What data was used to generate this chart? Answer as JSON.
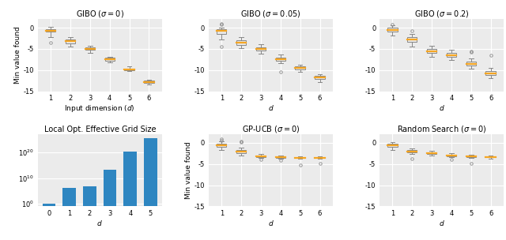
{
  "titles": [
    "GIBO ($\\sigma = 0$)",
    "GIBO ($\\sigma = 0.05$)",
    "GIBO ($\\sigma = 0.2$)",
    "Local Opt. Effective Grid Size",
    "GP-UCB ($\\sigma = 0$)",
    "Random Search ($\\sigma = 0$)"
  ],
  "xlabels": [
    "Input dimension ($d$)",
    "$d$",
    "$d$",
    "$d$",
    "$d$",
    "$d$"
  ],
  "gibo0": {
    "medians": [
      -0.7,
      -3.2,
      -5.0,
      -7.5,
      -9.8,
      -12.8
    ],
    "q1": [
      -1.0,
      -3.7,
      -5.3,
      -7.8,
      -10.05,
      -13.05
    ],
    "q3": [
      -0.35,
      -2.85,
      -4.65,
      -7.15,
      -9.6,
      -12.55
    ],
    "whislo": [
      -2.2,
      -4.5,
      -6.0,
      -8.15,
      -10.3,
      -13.35
    ],
    "whishi": [
      0.2,
      -2.3,
      -4.2,
      -6.9,
      -9.2,
      -12.3
    ],
    "fliers": [
      [
        -3.5
      ],
      [
        null
      ],
      [],
      [],
      [],
      []
    ]
  },
  "gibo005": {
    "medians": [
      -0.8,
      -3.5,
      -5.0,
      -7.5,
      -9.5,
      -11.8
    ],
    "q1": [
      -1.5,
      -4.0,
      -5.4,
      -7.9,
      -9.85,
      -12.2
    ],
    "q3": [
      -0.3,
      -3.0,
      -4.6,
      -7.0,
      -9.15,
      -11.4
    ],
    "whislo": [
      -2.8,
      -4.8,
      -6.2,
      -8.4,
      -10.5,
      -12.8
    ],
    "whishi": [
      0.1,
      -2.3,
      -3.9,
      -6.3,
      -8.8,
      -11.0
    ],
    "fliers_hi": [
      [
        0.8,
        1.0
      ],
      [],
      [],
      [],
      [],
      []
    ],
    "fliers_lo": [
      [
        -4.5
      ],
      [],
      [],
      [
        -10.5
      ],
      [],
      []
    ]
  },
  "gibo02": {
    "medians": [
      -0.5,
      -2.8,
      -5.5,
      -6.5,
      -8.5,
      -10.8
    ],
    "q1": [
      -1.0,
      -3.4,
      -5.95,
      -6.9,
      -9.0,
      -11.2
    ],
    "q3": [
      0.0,
      -2.2,
      -5.0,
      -6.0,
      -8.0,
      -10.3
    ],
    "whislo": [
      -1.8,
      -4.4,
      -6.8,
      -7.7,
      -9.7,
      -12.0
    ],
    "whishi": [
      0.5,
      -1.5,
      -4.2,
      -5.2,
      -7.2,
      -9.5
    ],
    "fliers_hi": [
      [
        0.8
      ],
      [
        -0.8
      ],
      [],
      [],
      [
        -5.5,
        -5.8
      ],
      [
        -6.5
      ]
    ],
    "fliers_lo": [
      [],
      [],
      [],
      [],
      [],
      []
    ]
  },
  "bar_x": [
    0,
    1,
    2,
    3,
    4,
    5
  ],
  "bar_heights": [
    1.0,
    2000000.0,
    6000000.0,
    20000000000000.0,
    1.5e+20,
    3e+25
  ],
  "bar_color": "#2e86c1",
  "gpucb0": {
    "medians": [
      -0.6,
      -2.0,
      -3.2,
      -3.4,
      -3.5,
      -3.5
    ],
    "q1": [
      -1.0,
      -2.5,
      -3.3,
      -3.5,
      -3.6,
      -3.6
    ],
    "q3": [
      -0.2,
      -1.6,
      -3.0,
      -3.2,
      -3.35,
      -3.4
    ],
    "whislo": [
      -1.7,
      -3.0,
      -3.55,
      -3.65,
      -3.75,
      -3.75
    ],
    "whishi": [
      0.4,
      -1.1,
      -2.7,
      -3.0,
      -3.1,
      -3.2
    ],
    "fliers_hi": [
      [
        0.5,
        1.0
      ],
      [
        0.1,
        0.3
      ],
      [],
      [],
      [],
      []
    ],
    "fliers_lo": [
      [],
      [],
      [
        -3.9
      ],
      [
        -4.1
      ],
      [
        -5.2
      ],
      [
        -4.8
      ]
    ]
  },
  "random0": {
    "medians": [
      -0.6,
      -2.0,
      -2.5,
      -3.0,
      -3.2,
      -3.3
    ],
    "q1": [
      -0.9,
      -2.3,
      -2.7,
      -3.2,
      -3.35,
      -3.45
    ],
    "q3": [
      -0.2,
      -1.7,
      -2.2,
      -2.8,
      -3.05,
      -3.15
    ],
    "whislo": [
      -1.6,
      -2.7,
      -3.0,
      -3.4,
      -3.6,
      -3.65
    ],
    "whishi": [
      0.2,
      -1.4,
      -1.9,
      -2.5,
      -2.8,
      -3.0
    ],
    "fliers_hi": [],
    "fliers_lo": [
      [],
      [
        -3.8
      ],
      [],
      [
        -4.0
      ],
      [
        -4.8
      ],
      []
    ]
  },
  "box_face": "#e8e8e8",
  "box_edge": "#888888",
  "median_color": "#f5a623",
  "whisker_color": "#888888",
  "flier_color": "#888888",
  "bg_color": "#ebebeb",
  "grid_color": "#ffffff",
  "xtick_labels_box": [
    "1",
    "2",
    "3",
    "4",
    "5",
    "6"
  ],
  "xtick_labels_bar": [
    "0",
    "1",
    "2",
    "3",
    "4",
    "5"
  ],
  "ylim_gibo": [
    -15,
    2
  ],
  "ylim_gpucb": [
    -15,
    2
  ],
  "yticks_main": [
    0,
    -5,
    -10,
    -15
  ],
  "bar_ylim_min": 0.1,
  "bar_ylim_max": 1e+27
}
